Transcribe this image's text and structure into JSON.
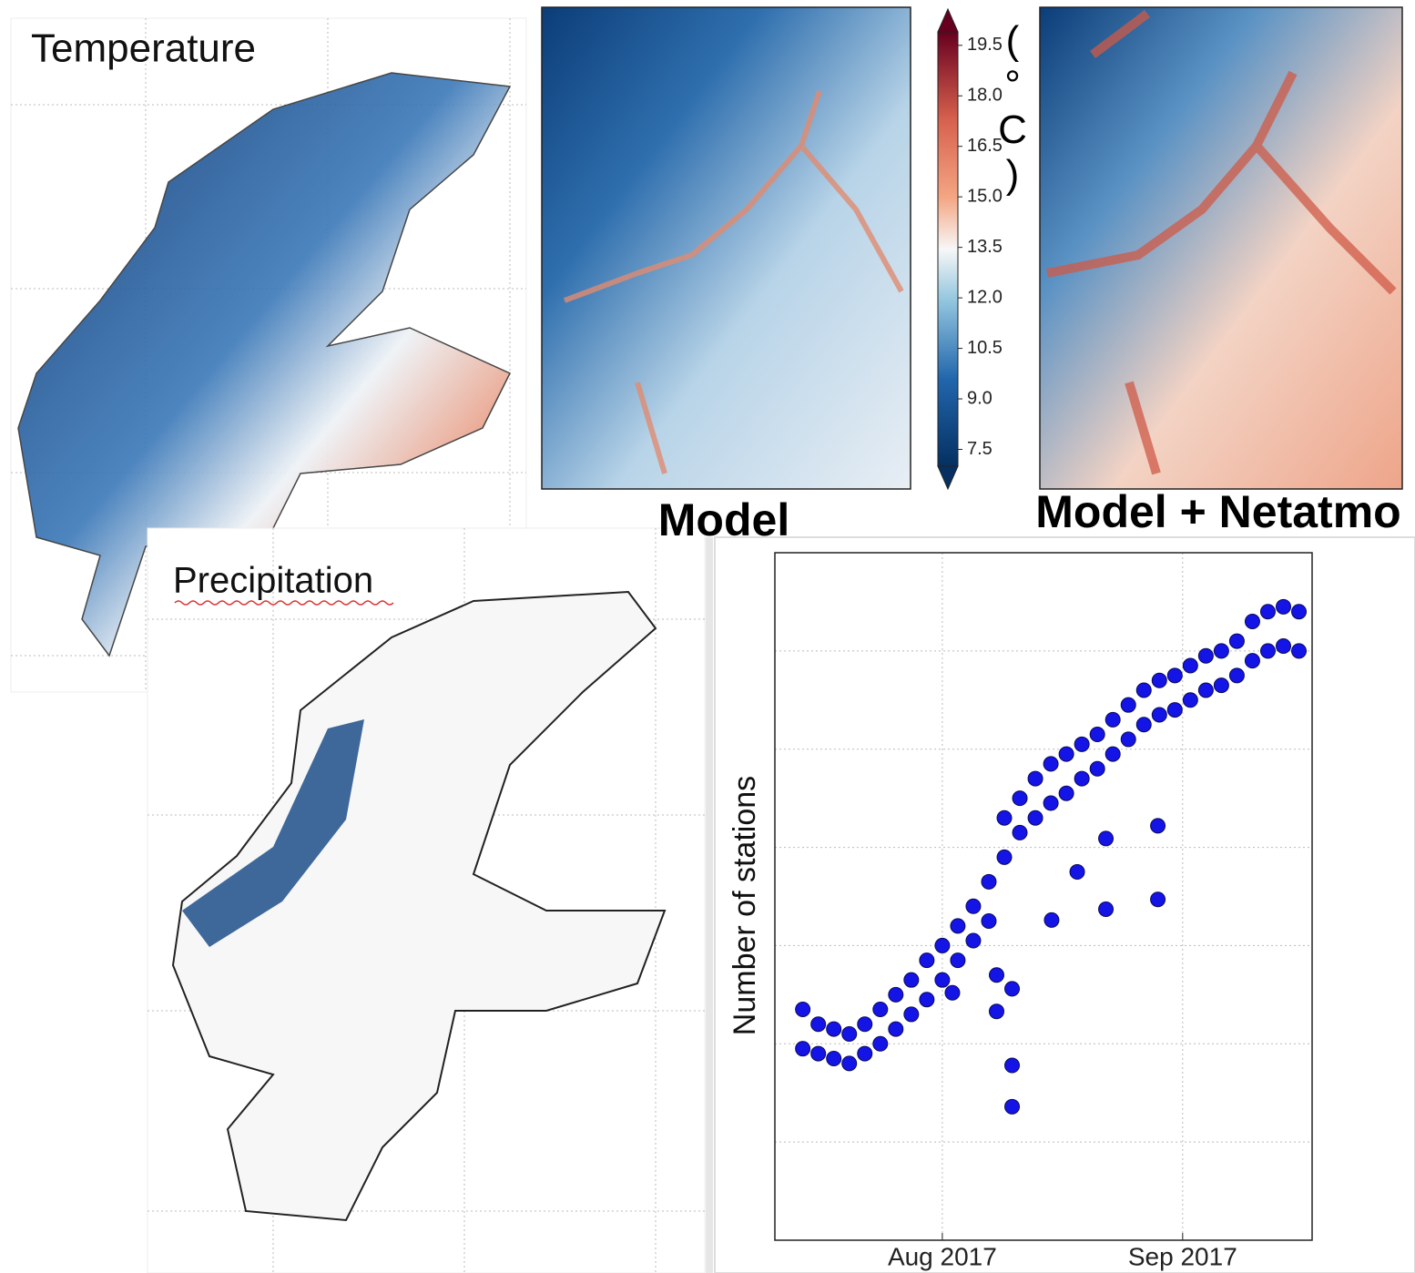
{
  "maps": {
    "temperature": {
      "title": "Temperature"
    },
    "precipitation": {
      "title": "Precipitation"
    },
    "model": {
      "title": "Model"
    },
    "model_netatmo": {
      "title": "Model + Netatmo"
    }
  },
  "chart_data": [
    {
      "type": "colorbar",
      "label": "(°C)",
      "ylim": [
        7.0,
        19.9
      ],
      "yticks": [
        7.5,
        {
          "value": 9,
          "label": "9.0"
        },
        10.5,
        {
          "value": 12,
          "label": "12.0"
        },
        13.5,
        {
          "value": 15,
          "label": "15.0"
        },
        16.5,
        {
          "value": 18,
          "label": "18.0"
        },
        19.5
      ]
    },
    {
      "type": "scatter",
      "ylabel": "Number of stations",
      "color": "#1414e6",
      "grid": true,
      "xlim": [
        -21.6,
        47.7
      ],
      "ylim": [
        0,
        7
      ],
      "xticks": [
        {
          "value": 0,
          "label": "Aug 2017"
        },
        {
          "value": 31,
          "label": "Sep 2017"
        }
      ],
      "x": [
        -18,
        -18,
        -16,
        -16,
        -14,
        -14,
        -12,
        -12,
        -10,
        -10,
        -8,
        -8,
        -6,
        -6,
        -4,
        -4,
        -2,
        -2,
        0,
        0,
        2,
        2,
        4,
        4,
        6,
        6,
        8,
        8,
        10,
        10,
        12,
        12,
        14,
        14,
        16,
        16,
        18,
        18,
        20,
        20,
        22,
        22,
        24,
        24,
        26,
        26,
        28,
        28,
        30,
        30,
        32,
        32,
        34,
        34,
        36,
        36,
        38,
        38,
        40,
        40,
        42,
        42,
        44,
        44,
        46,
        46,
        7,
        7,
        9,
        9,
        9,
        14.1,
        17.4,
        21.1,
        21.1,
        27.8,
        27.8,
        1.3
      ],
      "values": [
        2.35,
        1.95,
        2.2,
        1.9,
        2.15,
        1.85,
        2.1,
        1.8,
        2.2,
        1.9,
        2.35,
        2.0,
        2.5,
        2.15,
        2.65,
        2.3,
        2.85,
        2.45,
        3.0,
        2.65,
        3.2,
        2.85,
        3.4,
        3.05,
        3.65,
        3.25,
        4.3,
        3.9,
        4.5,
        4.15,
        4.7,
        4.3,
        4.85,
        4.45,
        4.95,
        4.55,
        5.05,
        4.7,
        5.15,
        4.8,
        5.3,
        4.95,
        5.45,
        5.1,
        5.6,
        5.25,
        5.7,
        5.35,
        5.75,
        5.4,
        5.85,
        5.5,
        5.95,
        5.6,
        6.0,
        5.65,
        6.1,
        5.75,
        6.3,
        5.9,
        6.4,
        6.0,
        6.45,
        6.05,
        6.4,
        6.0,
        2.7,
        2.33,
        2.56,
        1.78,
        1.36,
        3.26,
        3.75,
        4.09,
        3.37,
        4.22,
        3.47,
        2.52
      ]
    }
  ]
}
